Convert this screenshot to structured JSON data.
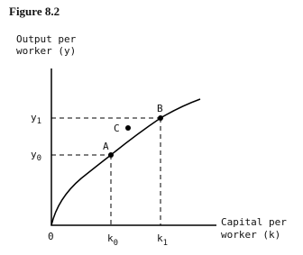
{
  "figure_title": "Figure 8.2",
  "y_axis_label": [
    "Output per",
    "worker (y)"
  ],
  "x_axis_label": [
    "Capital per",
    "worker (k)"
  ],
  "y_ticks": [
    {
      "base": "y",
      "sub": "1"
    },
    {
      "base": "y",
      "sub": "0"
    }
  ],
  "x_ticks": [
    {
      "base": "k",
      "sub": "0"
    },
    {
      "base": "k",
      "sub": "1"
    }
  ],
  "origin": "0",
  "points": [
    "A",
    "B",
    "C"
  ]
}
